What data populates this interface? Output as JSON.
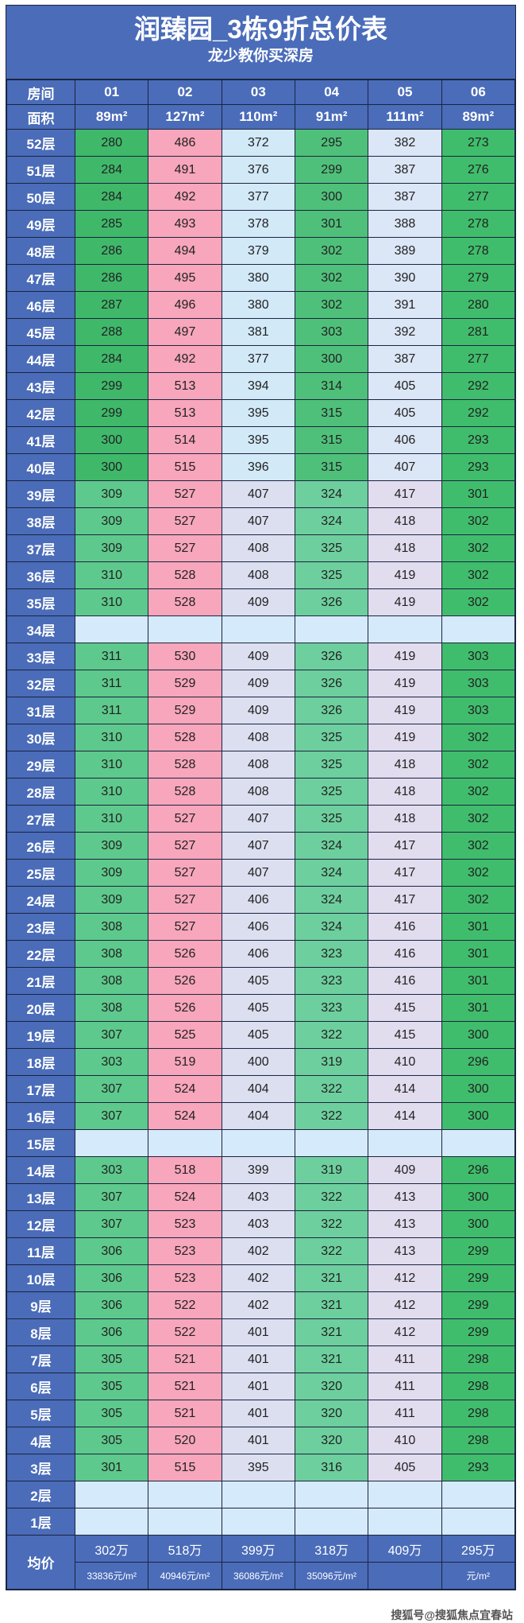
{
  "title": "润臻园_3栋9折总价表",
  "subtitle": "龙少教你买深房",
  "header": {
    "room_label": "房间",
    "rooms": [
      "01",
      "02",
      "03",
      "04",
      "05",
      "06"
    ],
    "area_label": "面积",
    "areas": [
      "89m²",
      "127m²",
      "110m²",
      "91m²",
      "111m²",
      "89m²"
    ]
  },
  "floors": [
    {
      "floor": "52层",
      "prices": [
        "280",
        "486",
        "372",
        "295",
        "382",
        "273"
      ]
    },
    {
      "floor": "51层",
      "prices": [
        "284",
        "491",
        "376",
        "299",
        "387",
        "276"
      ]
    },
    {
      "floor": "50层",
      "prices": [
        "284",
        "492",
        "377",
        "300",
        "387",
        "277"
      ]
    },
    {
      "floor": "49层",
      "prices": [
        "285",
        "493",
        "378",
        "301",
        "388",
        "278"
      ]
    },
    {
      "floor": "48层",
      "prices": [
        "286",
        "494",
        "379",
        "302",
        "389",
        "278"
      ]
    },
    {
      "floor": "47层",
      "prices": [
        "286",
        "495",
        "380",
        "302",
        "390",
        "279"
      ]
    },
    {
      "floor": "46层",
      "prices": [
        "287",
        "496",
        "380",
        "302",
        "391",
        "280"
      ]
    },
    {
      "floor": "45层",
      "prices": [
        "288",
        "497",
        "381",
        "303",
        "392",
        "281"
      ]
    },
    {
      "floor": "44层",
      "prices": [
        "284",
        "492",
        "377",
        "300",
        "387",
        "277"
      ]
    },
    {
      "floor": "43层",
      "prices": [
        "299",
        "513",
        "394",
        "314",
        "405",
        "292"
      ]
    },
    {
      "floor": "42层",
      "prices": [
        "299",
        "513",
        "395",
        "315",
        "405",
        "292"
      ]
    },
    {
      "floor": "41层",
      "prices": [
        "300",
        "514",
        "395",
        "315",
        "406",
        "293"
      ]
    },
    {
      "floor": "40层",
      "prices": [
        "300",
        "515",
        "396",
        "315",
        "407",
        "293"
      ]
    },
    {
      "floor": "39层",
      "prices": [
        "309",
        "527",
        "407",
        "324",
        "417",
        "301"
      ]
    },
    {
      "floor": "38层",
      "prices": [
        "309",
        "527",
        "407",
        "324",
        "418",
        "302"
      ]
    },
    {
      "floor": "37层",
      "prices": [
        "309",
        "527",
        "408",
        "325",
        "418",
        "302"
      ]
    },
    {
      "floor": "36层",
      "prices": [
        "310",
        "528",
        "408",
        "325",
        "419",
        "302"
      ]
    },
    {
      "floor": "35层",
      "prices": [
        "310",
        "528",
        "409",
        "326",
        "419",
        "302"
      ]
    },
    {
      "floor": "34层",
      "prices": [
        "",
        "",
        "",
        "",
        "",
        ""
      ]
    },
    {
      "floor": "33层",
      "prices": [
        "311",
        "530",
        "409",
        "326",
        "419",
        "303"
      ]
    },
    {
      "floor": "32层",
      "prices": [
        "311",
        "529",
        "409",
        "326",
        "419",
        "303"
      ]
    },
    {
      "floor": "31层",
      "prices": [
        "311",
        "529",
        "409",
        "326",
        "419",
        "303"
      ]
    },
    {
      "floor": "30层",
      "prices": [
        "310",
        "528",
        "408",
        "325",
        "419",
        "302"
      ]
    },
    {
      "floor": "29层",
      "prices": [
        "310",
        "528",
        "408",
        "325",
        "418",
        "302"
      ]
    },
    {
      "floor": "28层",
      "prices": [
        "310",
        "528",
        "408",
        "325",
        "418",
        "302"
      ]
    },
    {
      "floor": "27层",
      "prices": [
        "310",
        "527",
        "407",
        "325",
        "418",
        "302"
      ]
    },
    {
      "floor": "26层",
      "prices": [
        "309",
        "527",
        "407",
        "324",
        "417",
        "302"
      ]
    },
    {
      "floor": "25层",
      "prices": [
        "309",
        "527",
        "407",
        "324",
        "417",
        "302"
      ]
    },
    {
      "floor": "24层",
      "prices": [
        "309",
        "527",
        "406",
        "324",
        "417",
        "302"
      ]
    },
    {
      "floor": "23层",
      "prices": [
        "308",
        "527",
        "406",
        "324",
        "416",
        "301"
      ]
    },
    {
      "floor": "22层",
      "prices": [
        "308",
        "526",
        "406",
        "323",
        "416",
        "301"
      ]
    },
    {
      "floor": "21层",
      "prices": [
        "308",
        "526",
        "405",
        "323",
        "416",
        "301"
      ]
    },
    {
      "floor": "20层",
      "prices": [
        "308",
        "526",
        "405",
        "323",
        "415",
        "301"
      ]
    },
    {
      "floor": "19层",
      "prices": [
        "307",
        "525",
        "405",
        "322",
        "415",
        "300"
      ]
    },
    {
      "floor": "18层",
      "prices": [
        "303",
        "519",
        "400",
        "319",
        "410",
        "296"
      ]
    },
    {
      "floor": "17层",
      "prices": [
        "307",
        "524",
        "404",
        "322",
        "414",
        "300"
      ]
    },
    {
      "floor": "16层",
      "prices": [
        "307",
        "524",
        "404",
        "322",
        "414",
        "300"
      ]
    },
    {
      "floor": "15层",
      "prices": [
        "",
        "",
        "",
        "",
        "",
        ""
      ]
    },
    {
      "floor": "14层",
      "prices": [
        "303",
        "518",
        "399",
        "319",
        "409",
        "296"
      ]
    },
    {
      "floor": "13层",
      "prices": [
        "307",
        "524",
        "403",
        "322",
        "413",
        "300"
      ]
    },
    {
      "floor": "12层",
      "prices": [
        "307",
        "523",
        "403",
        "322",
        "413",
        "300"
      ]
    },
    {
      "floor": "11层",
      "prices": [
        "306",
        "523",
        "402",
        "322",
        "413",
        "299"
      ]
    },
    {
      "floor": "10层",
      "prices": [
        "306",
        "523",
        "402",
        "321",
        "412",
        "299"
      ]
    },
    {
      "floor": "9层",
      "prices": [
        "306",
        "522",
        "402",
        "321",
        "412",
        "299"
      ]
    },
    {
      "floor": "8层",
      "prices": [
        "306",
        "522",
        "401",
        "321",
        "412",
        "299"
      ]
    },
    {
      "floor": "7层",
      "prices": [
        "305",
        "521",
        "401",
        "321",
        "411",
        "298"
      ]
    },
    {
      "floor": "6层",
      "prices": [
        "305",
        "521",
        "401",
        "320",
        "411",
        "298"
      ]
    },
    {
      "floor": "5层",
      "prices": [
        "305",
        "521",
        "401",
        "320",
        "411",
        "298"
      ]
    },
    {
      "floor": "4层",
      "prices": [
        "305",
        "520",
        "401",
        "320",
        "410",
        "298"
      ]
    },
    {
      "floor": "3层",
      "prices": [
        "301",
        "515",
        "395",
        "316",
        "405",
        "293"
      ]
    },
    {
      "floor": "2层",
      "prices": [
        "",
        "",
        "",
        "",
        "",
        ""
      ]
    },
    {
      "floor": "1层",
      "prices": [
        "",
        "",
        "",
        "",
        "",
        ""
      ]
    }
  ],
  "average": {
    "label": "均价",
    "totals": [
      "302万",
      "518万",
      "399万",
      "318万",
      "409万",
      "295万"
    ],
    "unit_prices": [
      "33836元/m²",
      "40946元/m²",
      "36086元/m²",
      "35096元/m²",
      "",
      "元/m²"
    ]
  },
  "watermark": "搜狐号@搜狐焦点宜春站",
  "colors": {
    "header": "#4a6cb9",
    "col01": "#5ec98c",
    "col02": "#f7a6bb",
    "col03": "#dcdff0",
    "col04": "#6dcf9e",
    "col05": "#e1dcee",
    "col06": "#40bd6c",
    "empty": "#d5eafa"
  }
}
